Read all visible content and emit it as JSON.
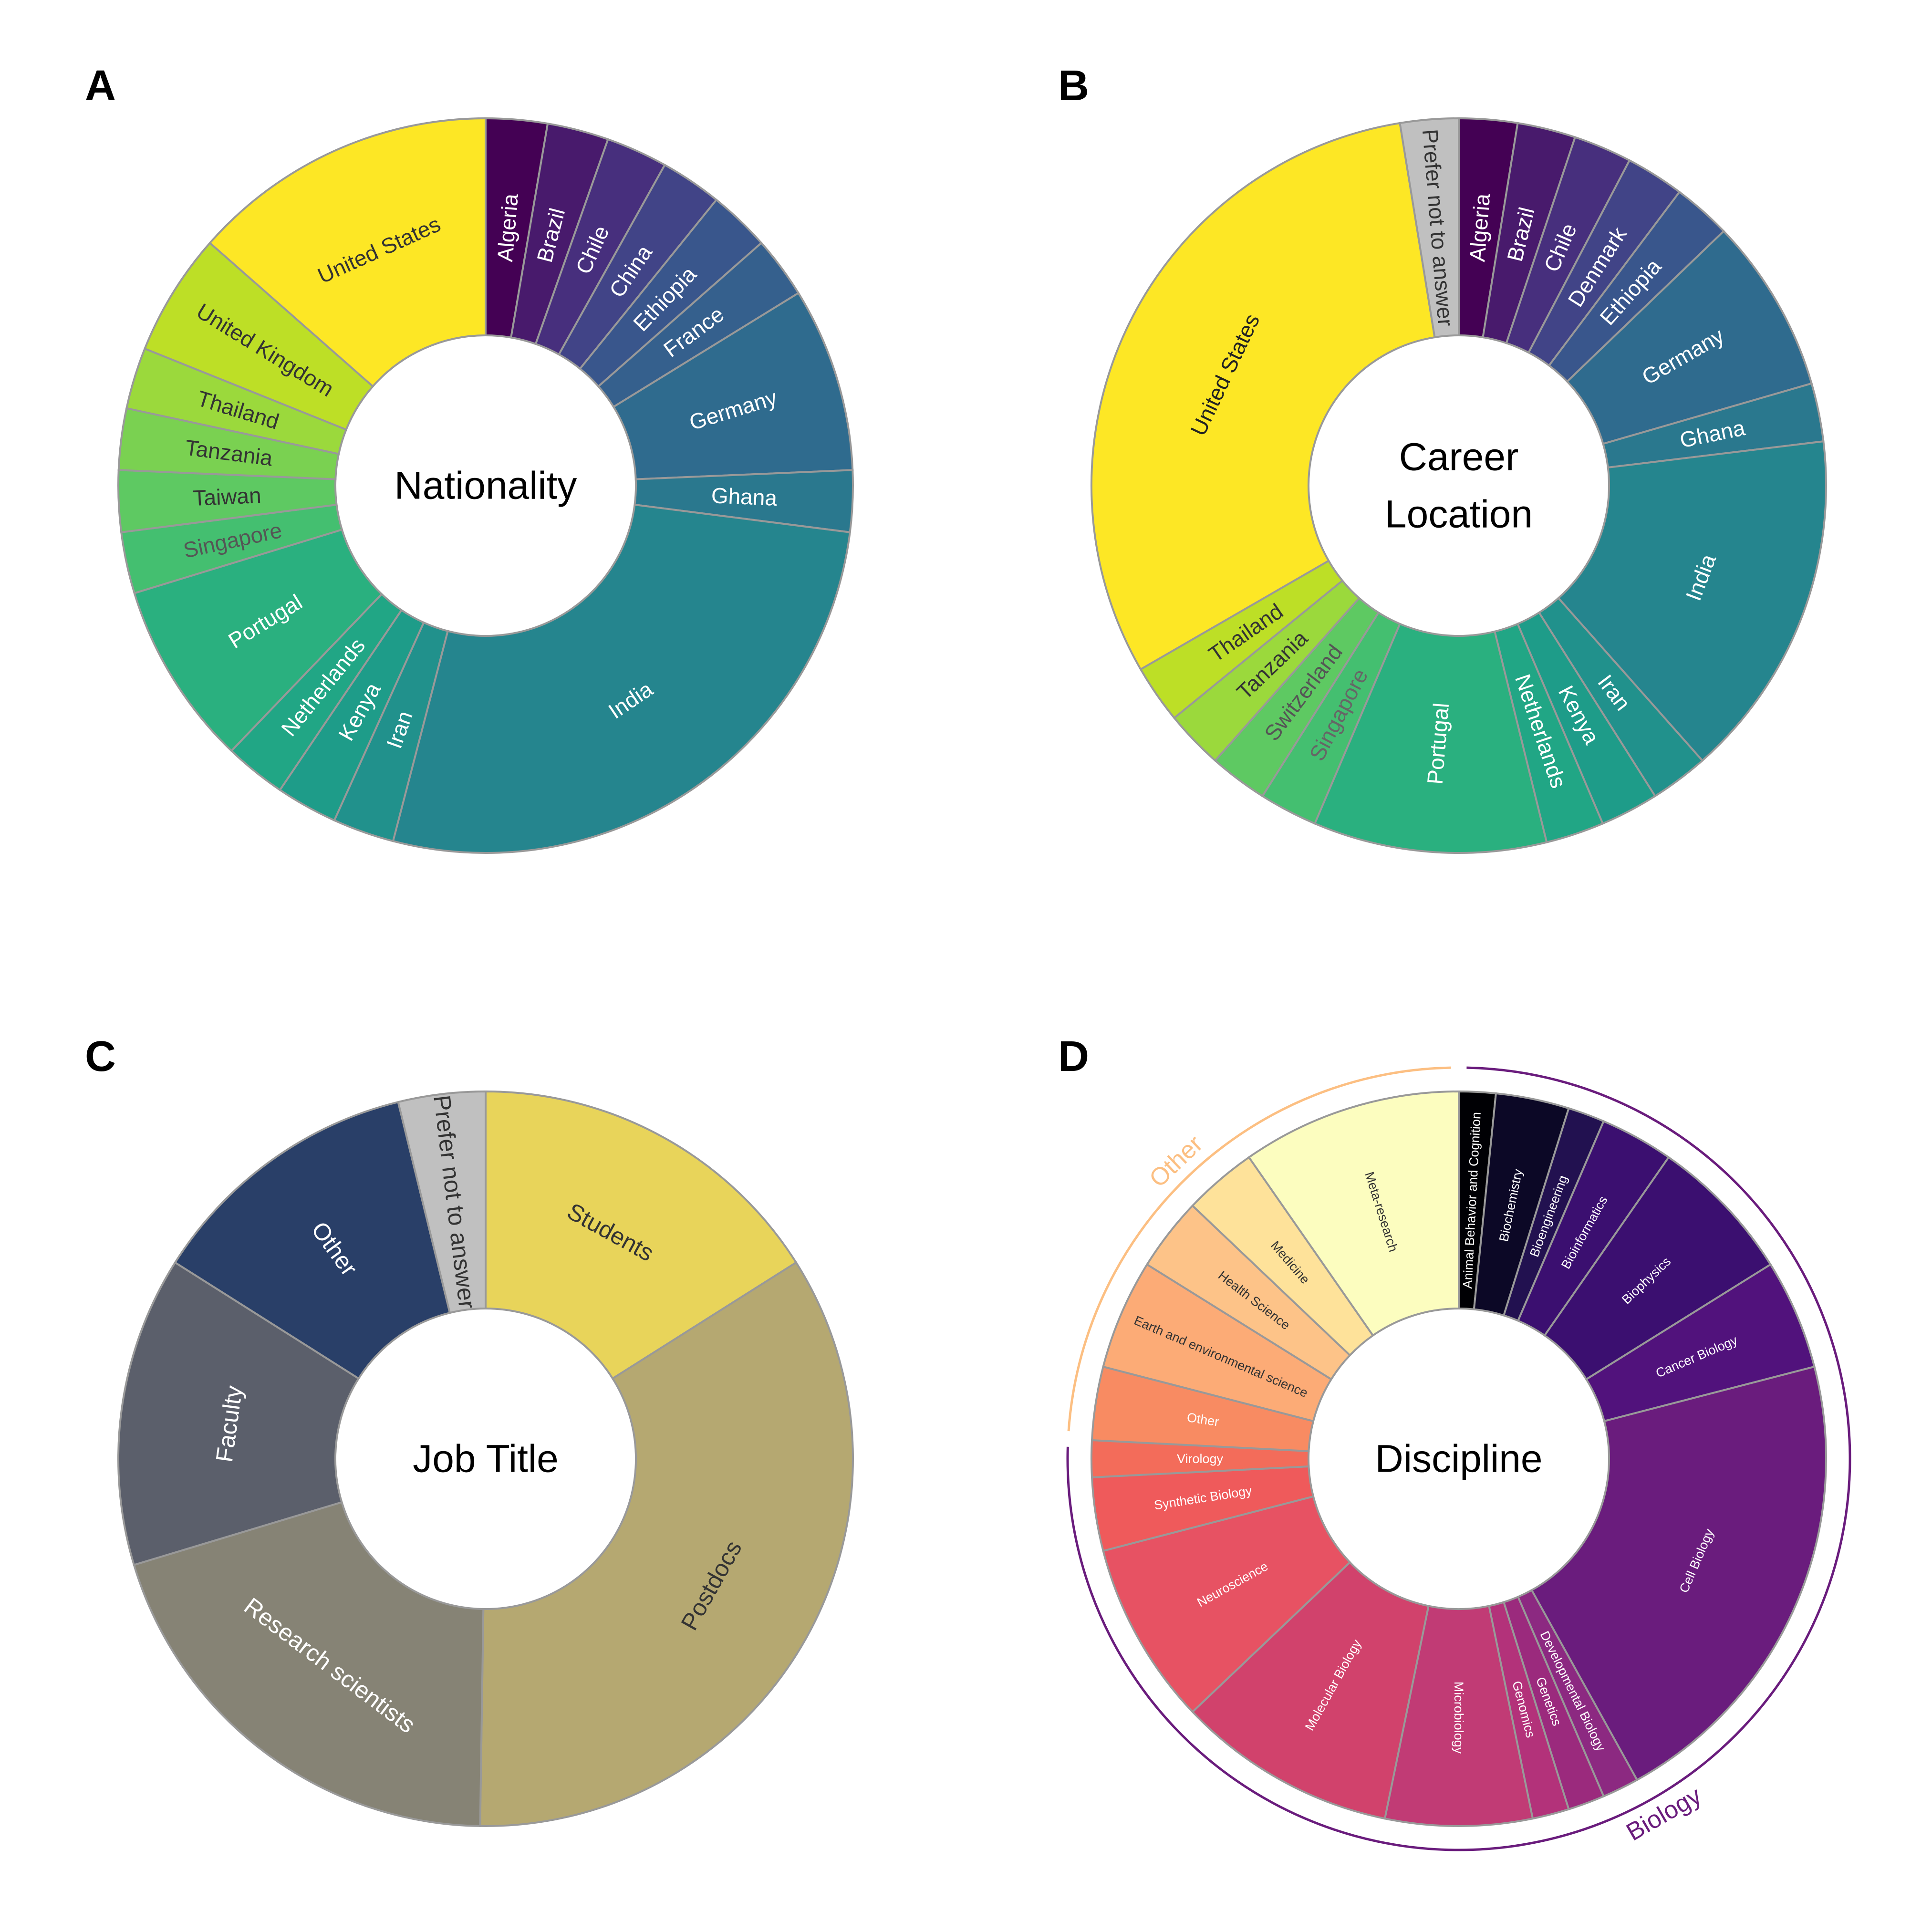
{
  "chart_data": [
    {
      "type": "pie",
      "panel": "A",
      "center_label": [
        "Nationality"
      ],
      "label_size": 46,
      "categories": [
        "Algeria",
        "Brazil",
        "Chile",
        "China",
        "Ethiopia",
        "France",
        "Germany",
        "Ghana",
        "India",
        "Iran",
        "Kenya",
        "Netherlands",
        "Portugal",
        "Singapore",
        "Taiwan",
        "Tanzania",
        "Thailand",
        "United Kingdom",
        "United States"
      ],
      "values": [
        1,
        1,
        1,
        1,
        1,
        1,
        3,
        1,
        10,
        1,
        1,
        1,
        3,
        1,
        1,
        1,
        1,
        2,
        5
      ],
      "colors": [
        "#440154",
        "#481a6c",
        "#472f7d",
        "#414487",
        "#39568c",
        "#35608d",
        "#2f6b8e",
        "#2a788e",
        "#25858e",
        "#21918c",
        "#1e9c89",
        "#21a685",
        "#2ab07f",
        "#44bf70",
        "#5ec962",
        "#7ad151",
        "#9bd93c",
        "#bddf26",
        "#fde725"
      ],
      "label_colors": [
        "#ffffff",
        "#ffffff",
        "#ffffff",
        "#ffffff",
        "#ffffff",
        "#ffffff",
        "#ffffff",
        "#ffffff",
        "#ffffff",
        "#ffffff",
        "#ffffff",
        "#ffffff",
        "#ffffff",
        "#555555",
        "#333333",
        "#333333",
        "#333333",
        "#333333",
        "#333333"
      ]
    },
    {
      "type": "pie",
      "panel": "B",
      "center_label": [
        "Career",
        "Location"
      ],
      "label_size": 46,
      "categories": [
        "Algeria",
        "Brazil",
        "Chile",
        "Denmark",
        "Ethiopia",
        "Germany",
        "Ghana",
        "India",
        "Iran",
        "Kenya",
        "Netherlands",
        "Portugal",
        "Singapore",
        "Switzerland",
        "Tanzania",
        "Thailand",
        "United States",
        "Prefer not to answer"
      ],
      "values": [
        1,
        1,
        1,
        1,
        1,
        3,
        1,
        6,
        1,
        1,
        1,
        4,
        1,
        1,
        1,
        1,
        12,
        1
      ],
      "colors": [
        "#440154",
        "#481a6c",
        "#472f7d",
        "#414487",
        "#39568c",
        "#2f6b8e",
        "#2a788e",
        "#25858e",
        "#21918c",
        "#1e9c89",
        "#21a685",
        "#2ab07f",
        "#44bf70",
        "#5ec962",
        "#9bd93c",
        "#bddf26",
        "#fde725",
        "#c0c0c0"
      ],
      "label_colors": [
        "#ffffff",
        "#ffffff",
        "#ffffff",
        "#ffffff",
        "#ffffff",
        "#ffffff",
        "#ffffff",
        "#ffffff",
        "#ffffff",
        "#ffffff",
        "#ffffff",
        "#ffffff",
        "#666666",
        "#555555",
        "#333333",
        "#333333",
        "#222222",
        "#333333"
      ]
    },
    {
      "type": "pie",
      "panel": "C",
      "center_label": [
        "Job Title"
      ],
      "label_size": 50,
      "categories": [
        "Students",
        "Postdocs",
        "Research scientists",
        "Faculty",
        "Other",
        "Prefer not to answer"
      ],
      "values": [
        6.7,
        14.3,
        8.4,
        5.7,
        5.1,
        1.6
      ],
      "colors": [
        "#e8d45a",
        "#b5a871",
        "#868375",
        "#5b5f6b",
        "#293f68",
        "#c0c0c0"
      ],
      "label_colors": [
        "#333333",
        "#333333",
        "#ffffff",
        "#ffffff",
        "#ffffff",
        "#333333"
      ]
    },
    {
      "type": "pie",
      "panel": "D",
      "center_label": [
        "Discipline"
      ],
      "label_size": 27,
      "categories": [
        "Animal Behavior and Cognition",
        "Biochemistry",
        "Bioengineering",
        "Bioinformatics",
        "Biophysics",
        "Cancer Biology",
        "Cell Biology",
        "Developmental Biology",
        "Genetics",
        "Genomics",
        "Microbiology",
        "Molecular Biology",
        "Neuroscience",
        "Synthetic Biology",
        "Virology",
        "Other",
        "Earth and environmental science",
        "Health Science",
        "Medicine",
        "Meta-research"
      ],
      "values": [
        1,
        2,
        1,
        2,
        4,
        3,
        13,
        1,
        1,
        1,
        4,
        6,
        5,
        2,
        1,
        2,
        3,
        2,
        2,
        6
      ],
      "colors": [
        "#000004",
        "#0c0826",
        "#221150",
        "#3b0f70",
        "#3b0f70",
        "#51127c",
        "#6a1c7d",
        "#8c2981",
        "#9b2a7d",
        "#b3327a",
        "#c13b75",
        "#d1426c",
        "#e75263",
        "#ef5a5b",
        "#f36c5a",
        "#f88b62",
        "#fcab76",
        "#fdc388",
        "#fee29a",
        "#fcfdbf"
      ],
      "label_colors": [
        "#ffffff",
        "#ffffff",
        "#ffffff",
        "#ffffff",
        "#ffffff",
        "#ffffff",
        "#ffffff",
        "#ffffff",
        "#ffffff",
        "#ffffff",
        "#ffffff",
        "#ffffff",
        "#ffffff",
        "#ffffff",
        "#ffffff",
        "#ffffff",
        "#333333",
        "#333333",
        "#333333",
        "#333333"
      ],
      "groups": [
        {
          "name": "Biology",
          "from": 0,
          "to": 14,
          "color": "#6a1c7d"
        },
        {
          "name": "Other",
          "from": 15,
          "to": 19,
          "color": "#fcbf82"
        }
      ]
    }
  ]
}
